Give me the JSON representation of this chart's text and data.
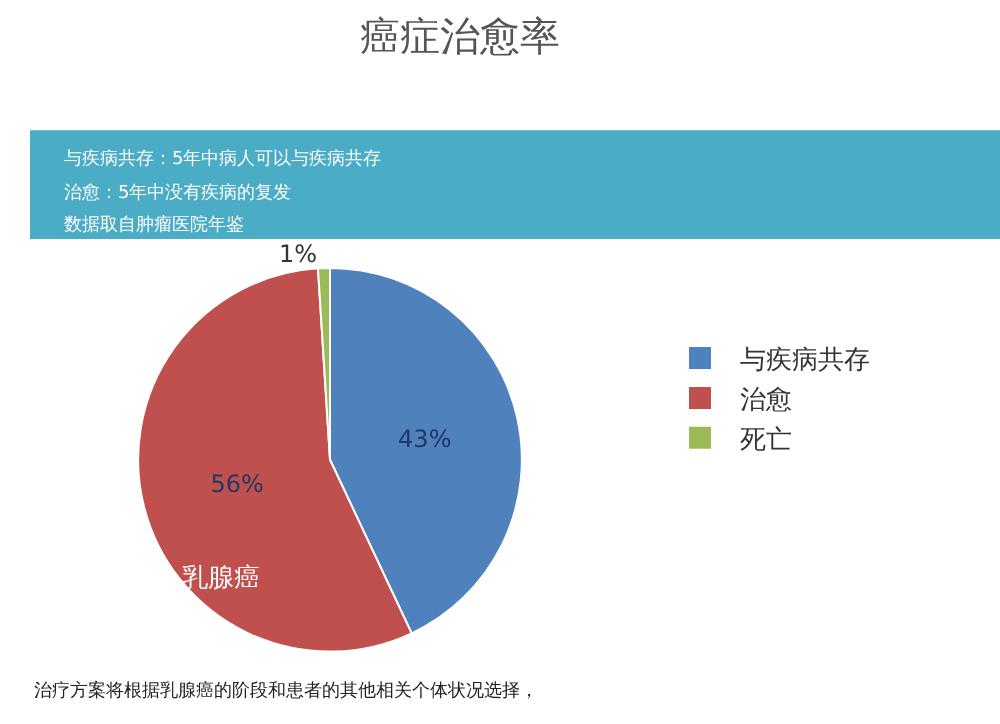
{
  "chart_data": {
    "type": "pie",
    "title": "癌症治愈率",
    "categories": [
      "与疾病共存",
      "治愈",
      "死亡"
    ],
    "values": [
      43,
      56,
      1
    ],
    "value_labels": [
      "43%",
      "56%",
      "1%"
    ],
    "colors": [
      "#4f81bd",
      "#c0504d",
      "#9bbb59"
    ],
    "legend": "right",
    "annotations": [
      "与疾病共存：5年中病人可以与疾病共存",
      "治愈：5年中没有疾病的复发",
      "数据取自肿瘤医院年鉴",
      "乳腺癌",
      "治疗方案将根据乳腺癌的阶段和患者的其他相关个体状况选择，"
    ]
  }
}
